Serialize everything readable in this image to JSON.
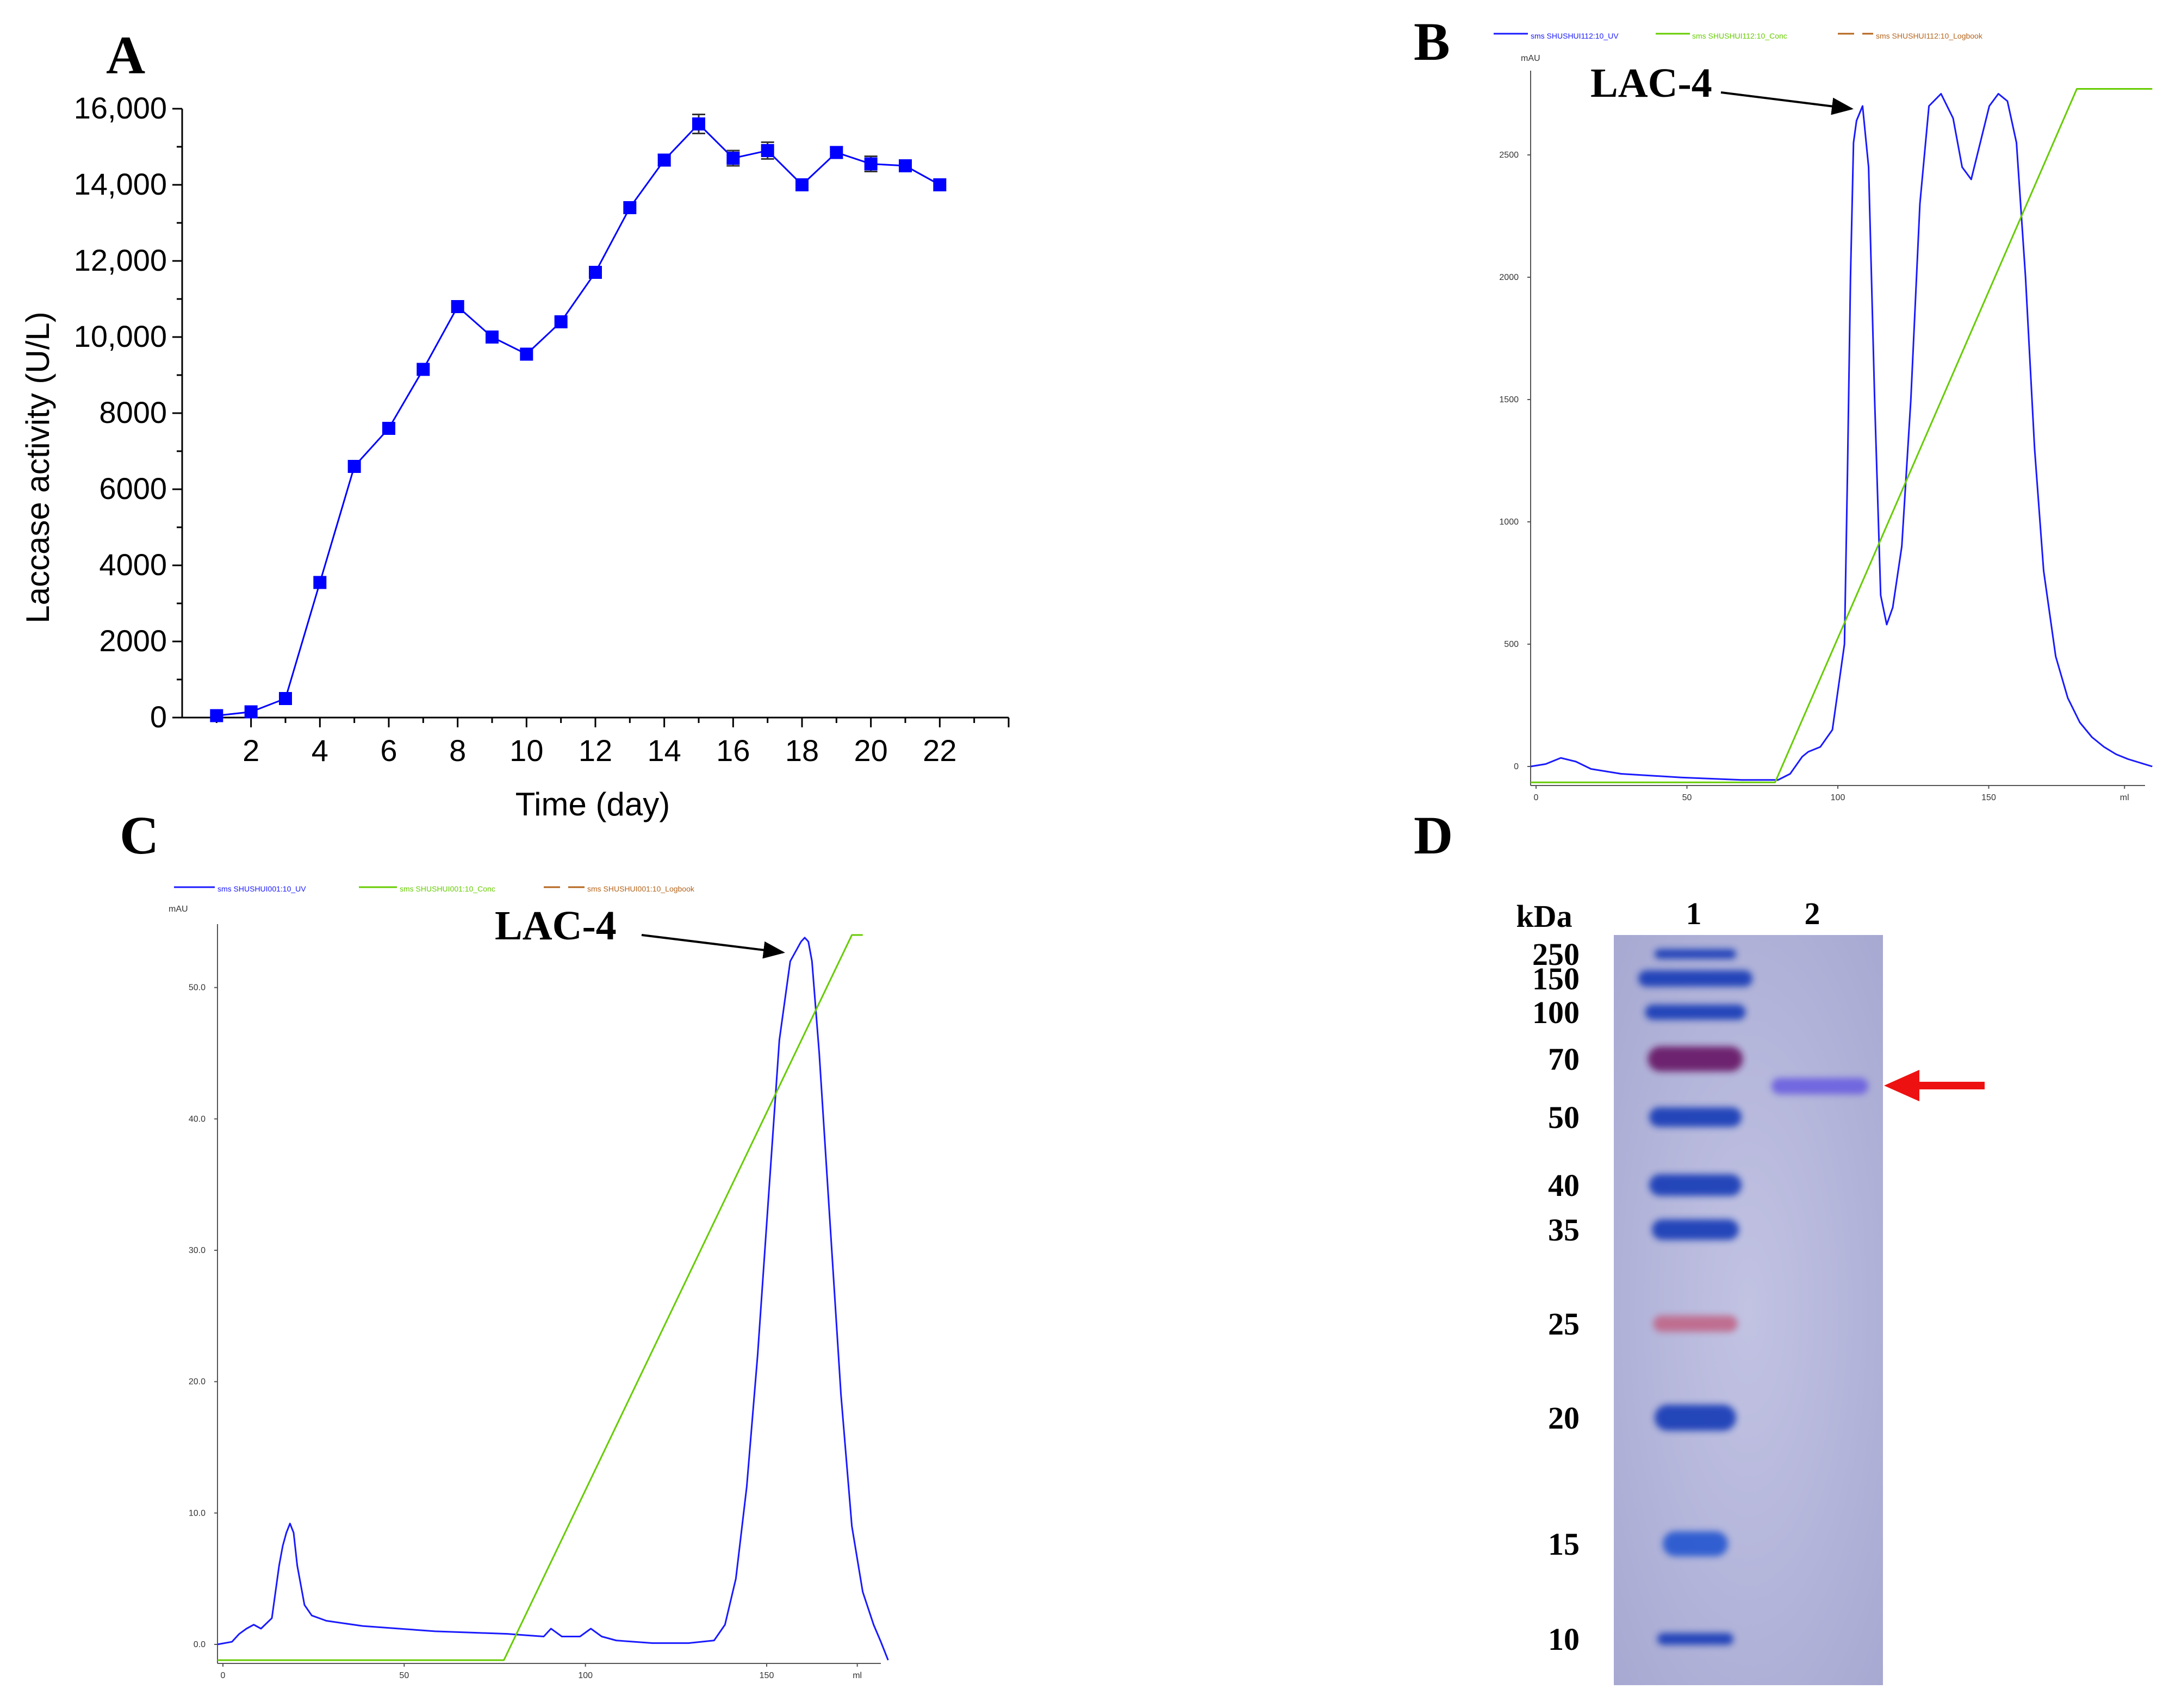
{
  "chart_data": [
    {
      "panel": "A",
      "type": "line",
      "xlabel": "Time (day)",
      "ylabel": "Laccase activity (U/L)",
      "xlim": [
        0,
        24
      ],
      "ylim": [
        0,
        16000
      ],
      "x_ticks": [
        "2",
        "4",
        "6",
        "8",
        "10",
        "12",
        "14",
        "16",
        "18",
        "20",
        "22"
      ],
      "y_ticks": [
        "0",
        "2000",
        "4000",
        "6000",
        "8000",
        "10,000",
        "12,000",
        "14,000",
        "16,000"
      ],
      "series": [
        {
          "name": "Laccase activity",
          "color": "#0000ff",
          "marker": "square",
          "x": [
            1,
            2,
            3,
            4,
            5,
            6,
            7,
            8,
            9,
            10,
            11,
            12,
            13,
            14,
            15,
            16,
            17,
            18,
            19,
            20,
            21,
            22
          ],
          "y": [
            50,
            150,
            500,
            3550,
            6600,
            7600,
            9150,
            10800,
            10000,
            9550,
            10400,
            11700,
            13400,
            14650,
            15600,
            14700,
            14900,
            14000,
            14850,
            14550,
            14500,
            14000
          ],
          "error": [
            0,
            0,
            0,
            0,
            0,
            0,
            0,
            0,
            0,
            0,
            0,
            0,
            0,
            150,
            250,
            200,
            220,
            0,
            150,
            200,
            150,
            0
          ]
        }
      ]
    },
    {
      "panel": "B",
      "type": "line",
      "peak_label": "LAC-4",
      "ylabel": "mAU",
      "xlabel_unit": "ml",
      "xlim": [
        0,
        200
      ],
      "ylim": [
        0,
        2800
      ],
      "x_ticks": [
        "0",
        "50",
        "100",
        "150",
        "ml"
      ],
      "y_ticks": [
        "0",
        "500",
        "1000",
        "1500",
        "2000",
        "2500"
      ],
      "legend": [
        "sms SHUSHUI112:10_UV",
        "sms SHUSHUI112:10_Conc",
        "sms SHUSHUI112:10_Logbook"
      ],
      "series": [
        {
          "name": "UV",
          "color": "#1a1aff",
          "x": [
            0,
            5,
            10,
            15,
            20,
            30,
            50,
            70,
            82,
            86,
            90,
            92,
            96,
            100,
            104,
            105,
            106,
            107,
            108,
            110,
            112,
            114,
            116,
            118,
            120,
            123,
            126,
            129,
            132,
            136,
            140,
            143,
            146,
            149,
            152,
            155,
            158,
            161,
            164,
            167,
            170,
            174,
            178,
            182,
            186,
            190,
            194,
            198,
            202,
            206
          ],
          "y": [
            0,
            10,
            35,
            20,
            -10,
            -30,
            -45,
            -55,
            -55,
            -30,
            40,
            60,
            80,
            150,
            500,
            1200,
            2000,
            2550,
            2640,
            2700,
            2450,
            1500,
            700,
            580,
            650,
            900,
            1500,
            2300,
            2700,
            2750,
            2650,
            2450,
            2400,
            2550,
            2700,
            2750,
            2720,
            2550,
            2000,
            1300,
            800,
            450,
            280,
            180,
            120,
            80,
            50,
            30,
            15,
            0
          ]
        },
        {
          "name": "Conc",
          "color": "#66cc00",
          "x": [
            0,
            81,
            181,
            206
          ],
          "y": [
            -65,
            -65,
            2770,
            2770
          ]
        }
      ]
    },
    {
      "panel": "C",
      "type": "line",
      "peak_label": "LAC-4",
      "ylabel": "mAU",
      "xlabel_unit": "ml",
      "xlim": [
        0,
        180
      ],
      "ylim": [
        0,
        54
      ],
      "x_ticks": [
        "0",
        "50",
        "100",
        "150",
        "ml"
      ],
      "y_ticks": [
        "0.0",
        "10.0",
        "20.0",
        "30.0",
        "40.0",
        "50.0"
      ],
      "legend": [
        "sms SHUSHUI001:10_UV",
        "sms SHUSHUI001:10_Conc",
        "sms SHUSHUI001:10_Logbook"
      ],
      "series": [
        {
          "name": "UV",
          "color": "#1a1aff",
          "x": [
            0,
            4,
            6,
            8,
            10,
            12,
            15,
            17,
            18,
            19,
            20,
            21,
            22,
            24,
            26,
            30,
            40,
            50,
            60,
            70,
            80,
            85,
            90,
            92,
            95,
            100,
            103,
            106,
            110,
            120,
            130,
            137,
            140,
            143,
            146,
            149,
            152,
            155,
            158,
            161,
            162,
            163,
            164,
            166,
            169,
            172,
            175,
            178,
            181,
            183,
            185
          ],
          "y": [
            0,
            0.2,
            0.8,
            1.2,
            1.5,
            1.2,
            2,
            6,
            7.5,
            8.5,
            9.2,
            8.5,
            6,
            3,
            2.2,
            1.8,
            1.4,
            1.2,
            1.0,
            0.9,
            0.8,
            0.7,
            0.6,
            1.2,
            0.6,
            0.6,
            1.2,
            0.6,
            0.3,
            0.1,
            0.1,
            0.3,
            1.5,
            5,
            12,
            22,
            34,
            46,
            52,
            53.5,
            53.8,
            53.5,
            52,
            45,
            32,
            19,
            9,
            4,
            1.5,
            0.2,
            -1.2
          ]
        },
        {
          "name": "Conc",
          "color": "#66cc00",
          "x": [
            0,
            79,
            175,
            178
          ],
          "y": [
            -1.2,
            -1.2,
            54,
            54
          ]
        }
      ]
    },
    {
      "panel": "D",
      "type": "table",
      "axis_label": "kDa",
      "lanes": [
        "1",
        "2"
      ],
      "markers_kda": [
        "250",
        "150",
        "100",
        "70",
        "50",
        "40",
        "35",
        "25",
        "20",
        "15",
        "10"
      ],
      "lane2_band_kda": 60
    }
  ],
  "labels": {
    "panel_a": "A",
    "panel_b": "B",
    "panel_c": "C",
    "panel_d": "D",
    "peak_b": "LAC-4",
    "peak_c": "LAC-4",
    "a_xlabel": "Time (day)",
    "a_ylabel": "Laccase activity  (U/L)",
    "mau_b": "mAU",
    "mau_c": "mAU",
    "ml_b": "ml",
    "ml_c": "ml",
    "kda": "kDa",
    "lane1": "1",
    "lane2": "2"
  },
  "colors": {
    "uv": "#1a1aff",
    "conc": "#66cc00",
    "logbook": "#b5651d",
    "arrow_red": "#ee1111",
    "gel_bg": "#b7b8dc",
    "marker_blue": "#1f3fb8"
  }
}
